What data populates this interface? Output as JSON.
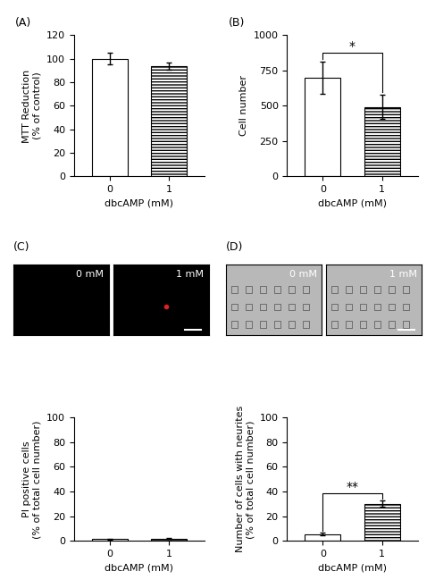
{
  "chart_data": [
    {
      "type": "bar",
      "title": "(A)",
      "categories": [
        "0",
        "1"
      ],
      "values": [
        100,
        94
      ],
      "errors": [
        5,
        3
      ],
      "colors": [
        "#ffffff",
        "#ffffff"
      ],
      "x_label": "dbcAMP (mM)",
      "y_label": "MTT Reduction\n(% of control)",
      "ylim": [
        0,
        120
      ],
      "yticks": [
        0,
        20,
        40,
        60,
        80,
        100,
        120
      ]
    },
    {
      "type": "bar",
      "title": "(B)",
      "categories": [
        "0",
        "1"
      ],
      "values": [
        700,
        493
      ],
      "errors": [
        115,
        85
      ],
      "colors": [
        "#ffffff",
        "#ffffff"
      ],
      "x_label": "dbcAMP (mM)",
      "y_label": "Cell number",
      "ylim": [
        0,
        1000
      ],
      "yticks": [
        0,
        250,
        500,
        750,
        1000
      ],
      "annotations": [
        "*"
      ]
    },
    {
      "type": "bar",
      "title": "(C)",
      "categories": [
        "0",
        "1"
      ],
      "values": [
        1.5,
        2
      ],
      "errors": [
        0.3,
        0.4
      ],
      "colors": [
        "#ffffff",
        "#ffffff"
      ],
      "x_label": "dbcAMP (mM)",
      "y_label": "PI positive cells\n(% of total cell number)",
      "ylim": [
        0,
        100
      ],
      "yticks": [
        0,
        20,
        40,
        60,
        80,
        100
      ],
      "image_labels": [
        "0 mM",
        "1 mM"
      ]
    },
    {
      "type": "bar",
      "title": "(D)",
      "categories": [
        "0",
        "1"
      ],
      "values": [
        5.5,
        30
      ],
      "errors": [
        1,
        2.5
      ],
      "colors": [
        "#ffffff",
        "#ffffff"
      ],
      "x_label": "dbcAMP (mM)",
      "y_label": "Number of cells with neurites\n(% of total cell number)",
      "ylim": [
        0,
        100
      ],
      "yticks": [
        0,
        20,
        40,
        60,
        80,
        100
      ],
      "image_labels": [
        "0 mM",
        "1 mM"
      ],
      "annotations": [
        "**"
      ]
    }
  ]
}
